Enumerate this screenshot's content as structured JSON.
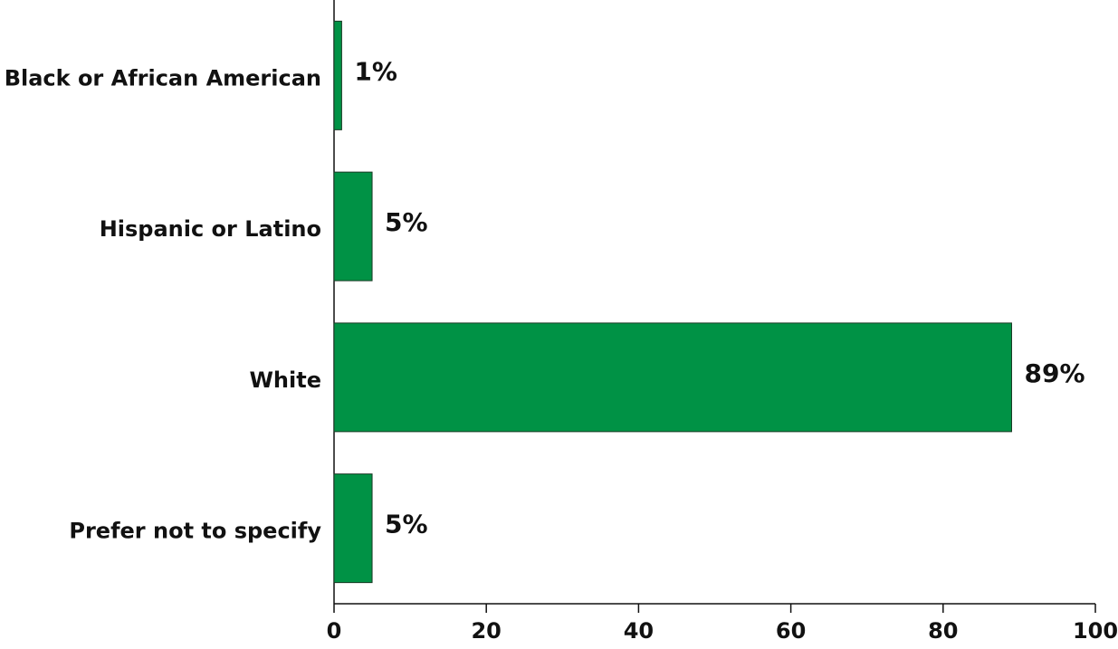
{
  "chart_data": {
    "type": "barh",
    "categories": [
      "Black or African American",
      "Hispanic or Latino",
      "White",
      "Prefer not to specify"
    ],
    "values": [
      1,
      5,
      89,
      5
    ],
    "value_labels": [
      "1%",
      "5%",
      "89%",
      "5%"
    ],
    "color": "#009245",
    "xlim": [
      0,
      100
    ],
    "xticks": [
      0,
      20,
      40,
      60,
      80,
      100
    ],
    "grid": false
  }
}
